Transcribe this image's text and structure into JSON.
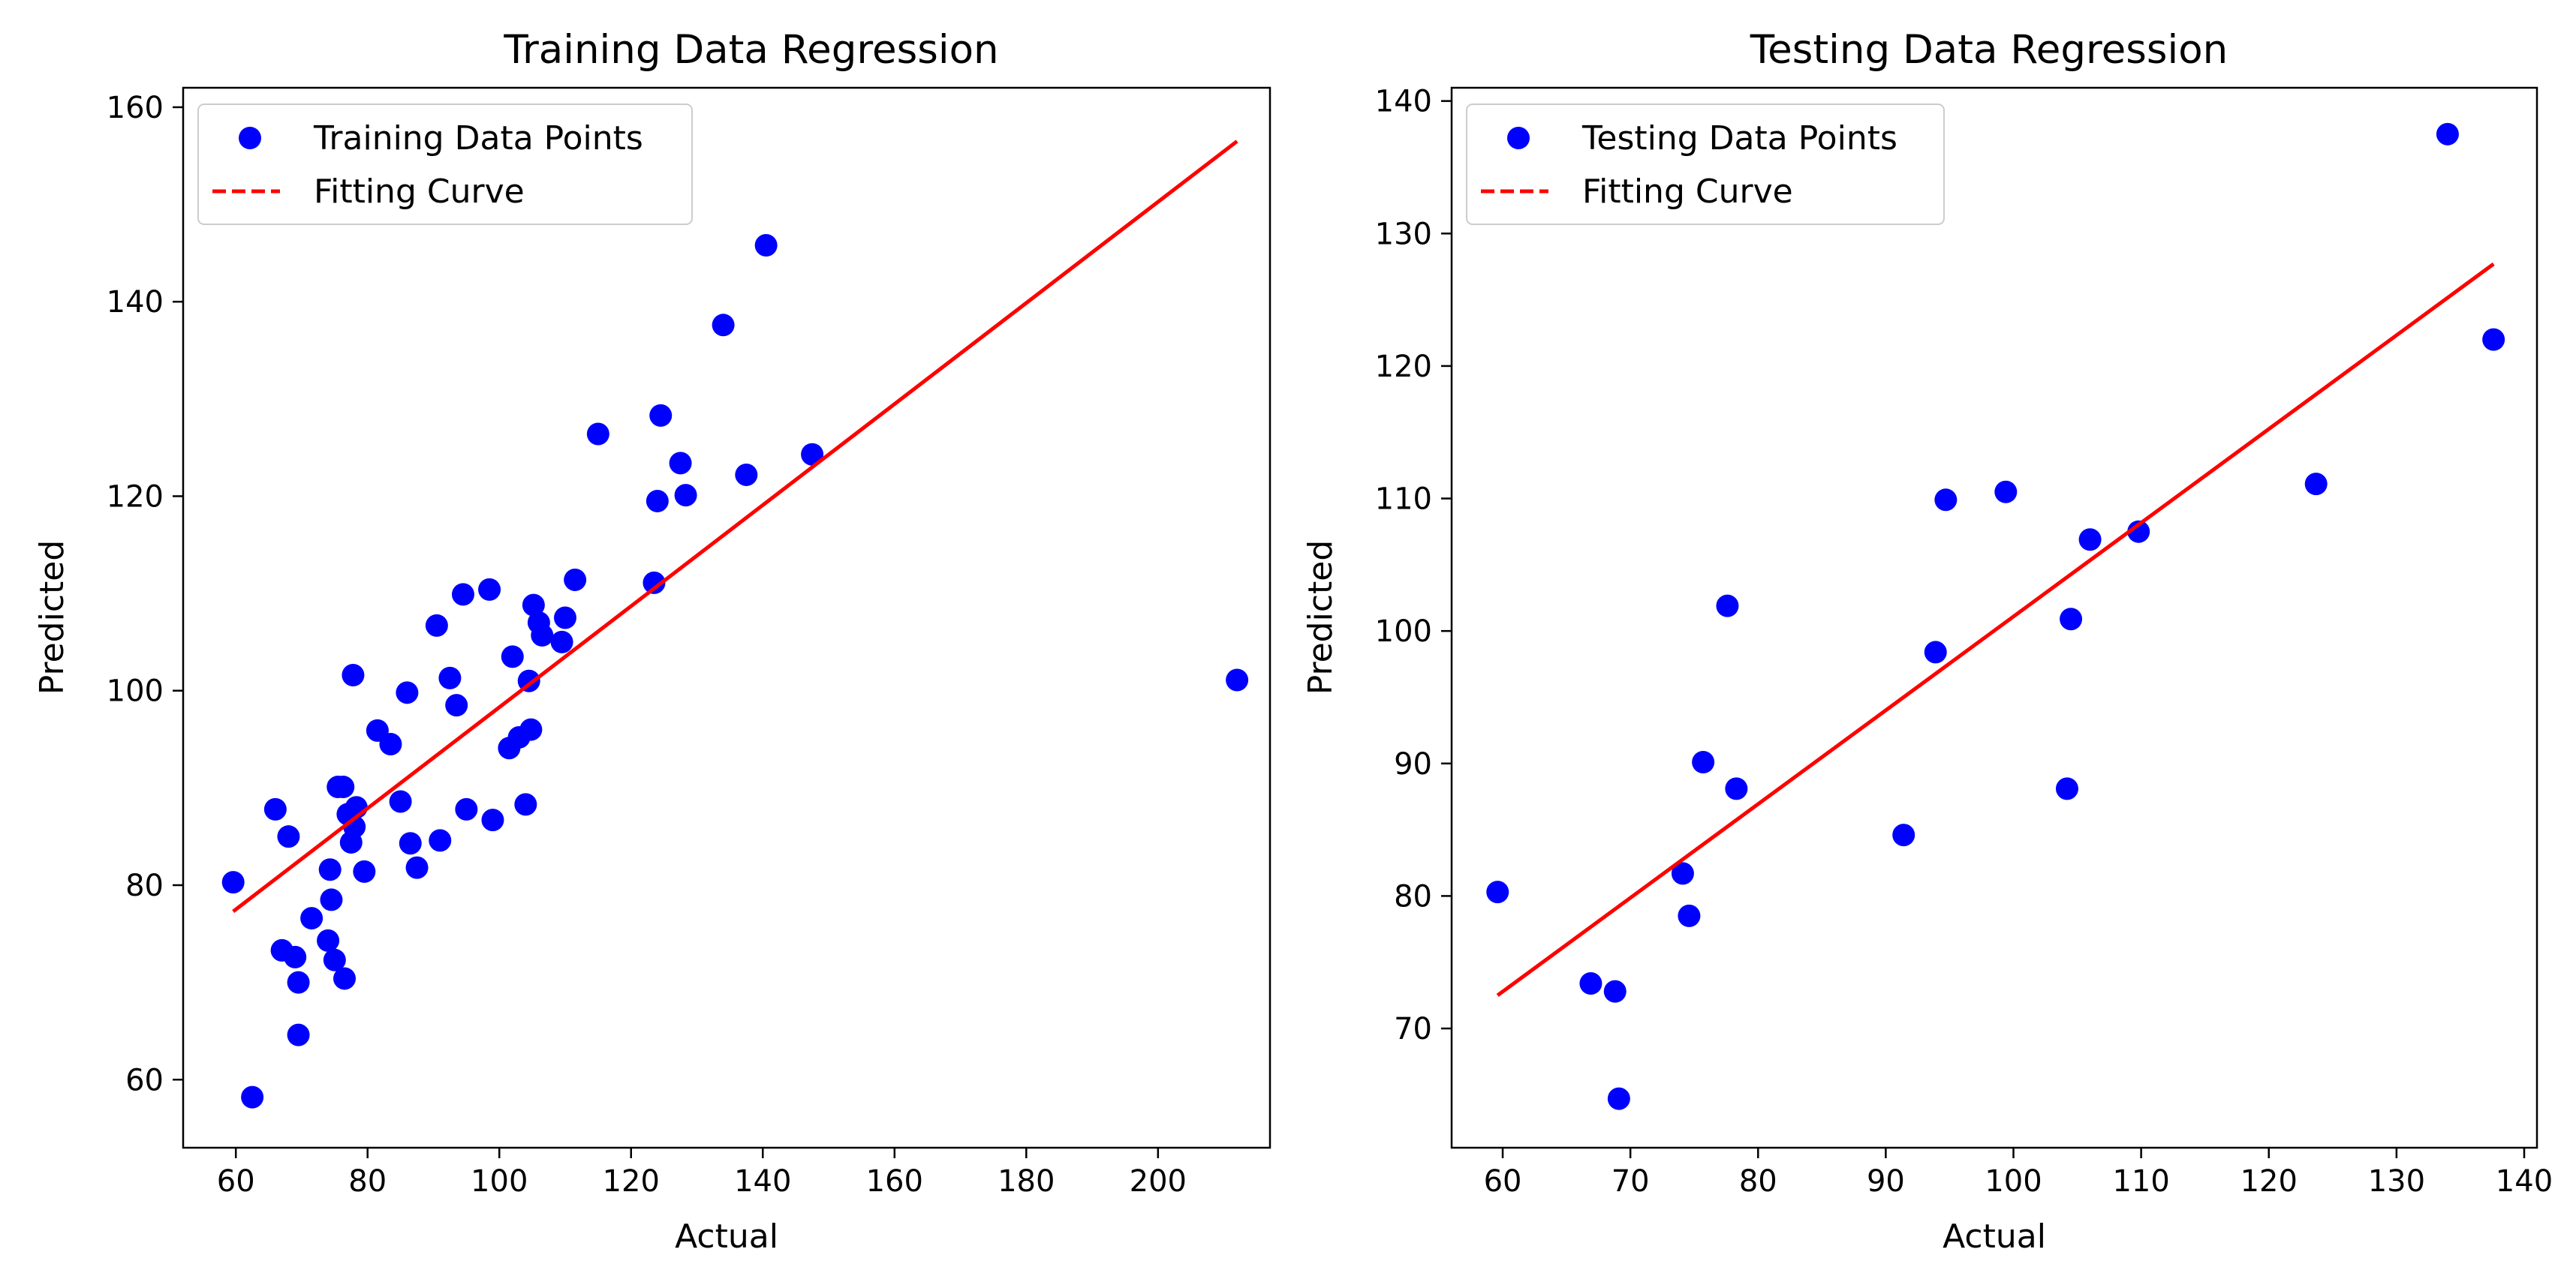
{
  "chart_data": [
    {
      "type": "scatter",
      "title": "Training Data Regression",
      "xlabel": "Actual",
      "ylabel": "Predicted",
      "xlim": [
        52,
        217
      ],
      "ylim": [
        53,
        162
      ],
      "xticks": [
        60,
        80,
        100,
        120,
        140,
        160,
        180,
        200
      ],
      "yticks": [
        60,
        80,
        100,
        120,
        140,
        160
      ],
      "legend": {
        "location": "top-left",
        "entries": [
          "Training Data Points",
          "Fitting Curve"
        ]
      },
      "series": [
        {
          "name": "Training Data Points",
          "kind": "points",
          "color": "#0000ff",
          "points": [
            [
              59.6,
              80.3
            ],
            [
              62.5,
              58.2
            ],
            [
              66.0,
              87.8
            ],
            [
              67.0,
              73.3
            ],
            [
              68.0,
              85.0
            ],
            [
              69.0,
              72.6
            ],
            [
              69.5,
              70.0
            ],
            [
              69.5,
              64.6
            ],
            [
              71.5,
              76.6
            ],
            [
              74.0,
              74.3
            ],
            [
              74.3,
              81.6
            ],
            [
              74.5,
              78.5
            ],
            [
              75.0,
              72.3
            ],
            [
              75.5,
              90.1
            ],
            [
              76.3,
              90.1
            ],
            [
              76.5,
              70.4
            ],
            [
              77.0,
              87.3
            ],
            [
              77.5,
              84.4
            ],
            [
              77.8,
              101.6
            ],
            [
              78.0,
              86.0
            ],
            [
              78.3,
              88.0
            ],
            [
              79.5,
              81.4
            ],
            [
              81.5,
              95.9
            ],
            [
              83.5,
              94.5
            ],
            [
              85.0,
              88.6
            ],
            [
              86.0,
              99.8
            ],
            [
              86.5,
              84.3
            ],
            [
              87.5,
              81.8
            ],
            [
              90.5,
              106.7
            ],
            [
              91.0,
              84.6
            ],
            [
              92.5,
              101.3
            ],
            [
              93.5,
              98.5
            ],
            [
              94.5,
              109.9
            ],
            [
              95.0,
              87.8
            ],
            [
              98.5,
              110.4
            ],
            [
              99.0,
              86.7
            ],
            [
              101.5,
              94.1
            ],
            [
              102.0,
              103.5
            ],
            [
              103.0,
              95.2
            ],
            [
              104.0,
              88.3
            ],
            [
              104.5,
              101.0
            ],
            [
              104.8,
              96.0
            ],
            [
              105.2,
              108.8
            ],
            [
              106.0,
              107.0
            ],
            [
              106.5,
              105.7
            ],
            [
              109.5,
              105.0
            ],
            [
              110.0,
              107.5
            ],
            [
              111.5,
              111.4
            ],
            [
              115.0,
              126.4
            ],
            [
              123.5,
              111.1
            ],
            [
              124.0,
              119.5
            ],
            [
              124.5,
              128.3
            ],
            [
              127.5,
              123.4
            ],
            [
              128.3,
              120.1
            ],
            [
              134.0,
              137.6
            ],
            [
              137.5,
              122.2
            ],
            [
              140.5,
              145.8
            ],
            [
              147.5,
              124.3
            ],
            [
              212.0,
              101.1
            ]
          ]
        },
        {
          "name": "Fitting Curve",
          "kind": "line",
          "color": "#ff0000",
          "points": [
            [
              59.6,
              77.3
            ],
            [
              212.0,
              156.5
            ]
          ]
        }
      ]
    },
    {
      "type": "scatter",
      "title": "Testing Data Regression",
      "xlabel": "Actual",
      "ylabel": "Predicted",
      "xlim": [
        56,
        141
      ],
      "ylim": [
        61,
        141
      ],
      "xticks": [
        60,
        70,
        80,
        90,
        100,
        110,
        120,
        130,
        140
      ],
      "yticks": [
        70,
        80,
        90,
        100,
        110,
        120,
        130,
        140
      ],
      "legend": {
        "location": "top-left",
        "entries": [
          "Testing Data Points",
          "Fitting Curve"
        ]
      },
      "series": [
        {
          "name": "Testing Data Points",
          "kind": "points",
          "color": "#0000ff",
          "points": [
            [
              59.6,
              80.3
            ],
            [
              66.9,
              73.4
            ],
            [
              68.8,
              72.8
            ],
            [
              69.1,
              64.7
            ],
            [
              74.1,
              81.7
            ],
            [
              74.6,
              78.5
            ],
            [
              75.7,
              90.1
            ],
            [
              77.6,
              101.9
            ],
            [
              78.3,
              88.1
            ],
            [
              91.4,
              84.6
            ],
            [
              93.9,
              98.4
            ],
            [
              94.7,
              109.9
            ],
            [
              99.4,
              110.5
            ],
            [
              104.2,
              88.1
            ],
            [
              104.5,
              100.9
            ],
            [
              106.0,
              106.9
            ],
            [
              109.8,
              107.5
            ],
            [
              123.7,
              111.1
            ],
            [
              134.0,
              137.5
            ],
            [
              137.6,
              122.0
            ]
          ]
        },
        {
          "name": "Fitting Curve",
          "kind": "line",
          "color": "#ff0000",
          "points": [
            [
              59.6,
              72.5
            ],
            [
              137.6,
              127.7
            ]
          ]
        }
      ]
    }
  ]
}
